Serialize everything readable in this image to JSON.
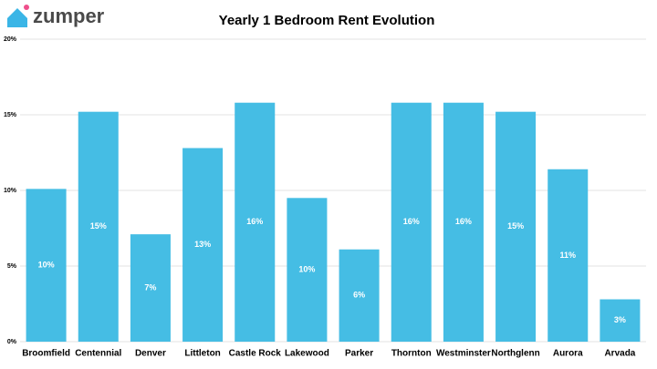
{
  "header": {
    "logo": "zumper"
  },
  "chart_data": {
    "type": "bar",
    "title": "Yearly 1 Bedroom Rent Evolution",
    "categories": [
      "Broomfield",
      "Centennial",
      "Denver",
      "Littleton",
      "Castle Rock",
      "Lakewood",
      "Parker",
      "Thornton",
      "Westminster",
      "Northglenn",
      "Aurora",
      "Arvada"
    ],
    "values": [
      10.1,
      15.2,
      7.1,
      12.8,
      15.8,
      9.5,
      6.1,
      15.8,
      15.8,
      15.2,
      11.4,
      2.8
    ],
    "value_labels": [
      "10%",
      "15%",
      "7%",
      "13%",
      "16%",
      "10%",
      "6%",
      "16%",
      "16%",
      "15%",
      "11%",
      "3%"
    ],
    "color": "#45bde4",
    "ylim": [
      0,
      20
    ],
    "yticks": [
      {
        "value": 0,
        "label": "0%"
      },
      {
        "value": 5,
        "label": "5%"
      },
      {
        "value": 10,
        "label": "10%"
      },
      {
        "value": 15,
        "label": "15%"
      },
      {
        "value": 20,
        "label": "20%"
      }
    ],
    "grid": true
  }
}
